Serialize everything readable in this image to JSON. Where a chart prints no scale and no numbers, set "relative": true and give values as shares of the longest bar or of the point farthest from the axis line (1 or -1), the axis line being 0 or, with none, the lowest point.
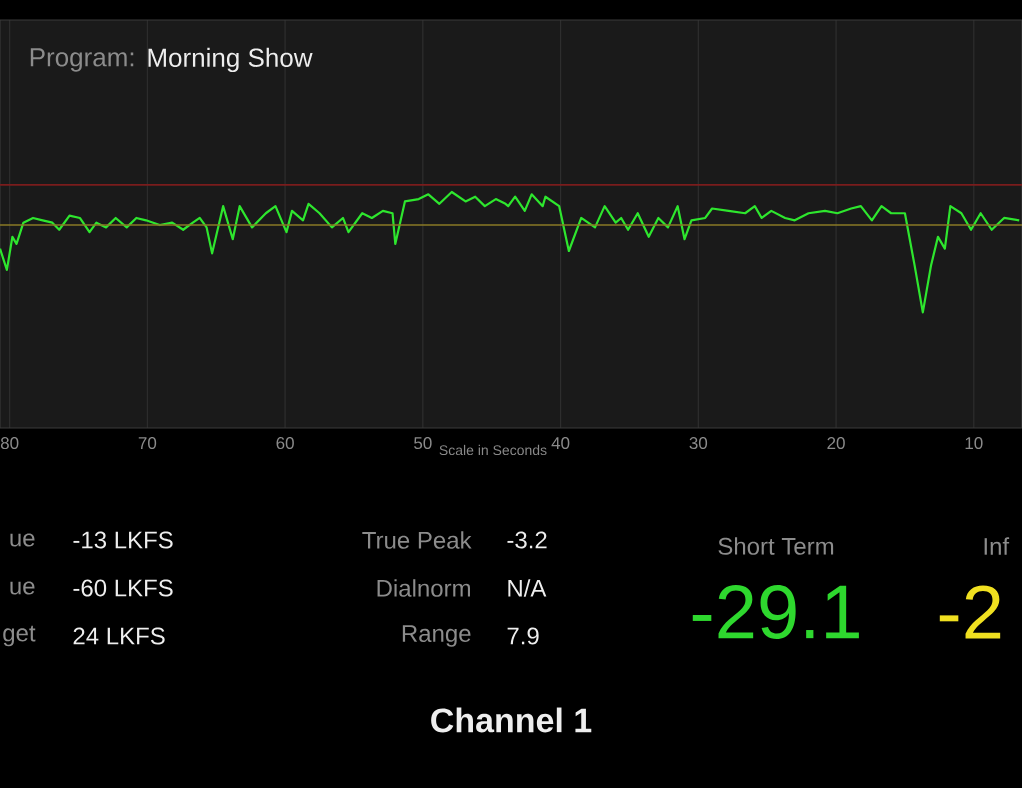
{
  "chart_data": {
    "type": "line",
    "relative": true,
    "title": "Channel 1",
    "xlabel": "Scale in Seconds",
    "xlim": [
      80.7,
      6.5
    ],
    "xticks": [
      80,
      70,
      60,
      50,
      40,
      30,
      20,
      10
    ],
    "grid": "x",
    "ref_lines": [
      {
        "axis": "y",
        "value": 1.03,
        "color": "#7a1c1c"
      },
      {
        "axis": "y",
        "value": 0.86,
        "color": "#8a7a26"
      }
    ],
    "annotations": [
      "Program:",
      "Morning Show",
      "ue",
      "-13 LKFS",
      "ue",
      "-60 LKFS",
      "get",
      "24 LKFS",
      "True Peak",
      "-3.2",
      "Dialnorm",
      "N/A",
      "Range",
      "7.9",
      "Short Term",
      "-29.1",
      "Inf",
      "-2"
    ],
    "series": [
      {
        "color": "#2ee62e",
        "x": [
          80.7,
          80.2,
          79.8,
          79.5,
          79.0,
          78.3,
          77.6,
          76.9,
          76.4,
          75.65,
          74.9,
          74.2,
          73.7,
          73.0,
          72.3,
          71.5,
          70.8,
          70.1,
          69.1,
          68.2,
          67.4,
          66.7,
          66.2,
          65.7,
          65.3,
          64.5,
          63.8,
          63.3,
          62.4,
          61.4,
          60.7,
          59.9,
          59.5,
          58.7,
          58.3,
          57.5,
          56.6,
          55.8,
          55.4,
          54.4,
          53.7,
          52.9,
          52.2,
          52.0,
          51.3,
          50.3,
          49.6,
          48.8,
          47.9,
          46.9,
          46.2,
          45.5,
          44.7,
          44.0,
          43.8,
          43.3,
          42.6,
          42.1,
          41.3,
          41.1,
          40.1,
          39.4,
          38.5,
          37.5,
          36.8,
          36.0,
          35.6,
          35.1,
          34.4,
          33.6,
          32.9,
          32.2,
          31.5,
          31.0,
          30.5,
          29.5,
          29.0,
          27.8,
          26.6,
          25.9,
          25.4,
          24.7,
          23.7,
          23.0,
          22.0,
          20.8,
          19.9,
          18.9,
          18.2,
          17.4,
          16.7,
          16.0,
          15.0,
          14.3,
          13.7,
          13.1,
          12.6,
          12.1,
          11.7,
          10.9,
          10.2,
          9.5,
          8.7,
          7.8,
          6.7
        ],
        "values": [
          0.76,
          0.67,
          0.81,
          0.78,
          0.87,
          0.89,
          0.88,
          0.87,
          0.84,
          0.9,
          0.89,
          0.83,
          0.87,
          0.85,
          0.89,
          0.85,
          0.89,
          0.88,
          0.86,
          0.87,
          0.84,
          0.87,
          0.89,
          0.85,
          0.74,
          0.94,
          0.8,
          0.94,
          0.85,
          0.91,
          0.94,
          0.83,
          0.92,
          0.88,
          0.95,
          0.91,
          0.85,
          0.89,
          0.83,
          0.91,
          0.89,
          0.92,
          0.91,
          0.78,
          0.96,
          0.97,
          0.99,
          0.95,
          1.0,
          0.96,
          0.98,
          0.94,
          0.97,
          0.95,
          0.94,
          0.98,
          0.92,
          0.99,
          0.94,
          0.98,
          0.94,
          0.75,
          0.89,
          0.85,
          0.94,
          0.87,
          0.89,
          0.84,
          0.91,
          0.81,
          0.89,
          0.85,
          0.94,
          0.8,
          0.88,
          0.89,
          0.93,
          0.92,
          0.91,
          0.94,
          0.89,
          0.92,
          0.89,
          0.88,
          0.91,
          0.92,
          0.91,
          0.93,
          0.94,
          0.88,
          0.94,
          0.91,
          0.91,
          0.69,
          0.49,
          0.69,
          0.81,
          0.76,
          0.94,
          0.91,
          0.84,
          0.91,
          0.84,
          0.89,
          0.88
        ]
      }
    ]
  }
}
